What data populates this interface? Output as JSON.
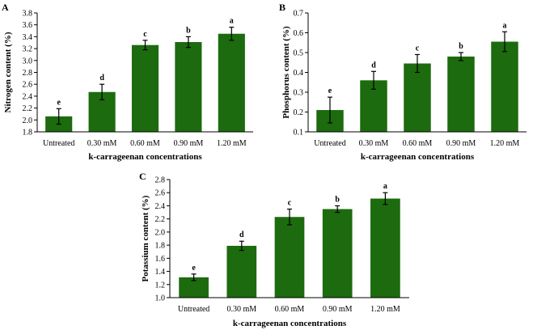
{
  "chart_data": [
    {
      "panel": "A",
      "type": "bar",
      "categories": [
        "Untreated",
        "0.30 mM",
        "0.60 mM",
        "0.90 mM",
        "1.20 mM"
      ],
      "values": [
        2.06,
        2.47,
        3.26,
        3.31,
        3.45
      ],
      "errors": [
        0.13,
        0.13,
        0.08,
        0.09,
        0.11
      ],
      "significance": [
        "e",
        "d",
        "c",
        "b",
        "a"
      ],
      "xlabel": "k-carrageenan concentrations",
      "ylabel": "Nitrogen content (%)",
      "ylim": [
        1.8,
        3.8
      ],
      "yticks": [
        "1.8",
        "2.0",
        "2.2",
        "2.4",
        "2.6",
        "2.8",
        "3.0",
        "3.2",
        "3.4",
        "3.6",
        "3.8"
      ],
      "color": "#1c6b0e"
    },
    {
      "panel": "B",
      "type": "bar",
      "categories": [
        "Untreated",
        "0.30 mM",
        "0.60 mM",
        "0.90 mM",
        "1.20 mM"
      ],
      "values": [
        0.21,
        0.36,
        0.445,
        0.48,
        0.555
      ],
      "errors": [
        0.065,
        0.045,
        0.045,
        0.02,
        0.05
      ],
      "significance": [
        "e",
        "d",
        "c",
        "b",
        "a"
      ],
      "xlabel": "k-carrageenan concentrations",
      "ylabel": "Phosphorus content (%)",
      "ylim": [
        0.1,
        0.7
      ],
      "yticks": [
        "0.1",
        "0.2",
        "0.3",
        "0.4",
        "0.5",
        "0.6",
        "0.7"
      ],
      "color": "#1c6b0e"
    },
    {
      "panel": "C",
      "type": "bar",
      "categories": [
        "Untreated",
        "0.30 mM",
        "0.60 mM",
        "0.90 mM",
        "1.20 mM"
      ],
      "values": [
        1.31,
        1.79,
        2.23,
        2.35,
        2.51
      ],
      "errors": [
        0.05,
        0.07,
        0.12,
        0.05,
        0.09
      ],
      "significance": [
        "e",
        "d",
        "c",
        "b",
        "a"
      ],
      "xlabel": "k-carrageenan concentrations",
      "ylabel": "Potassium content (%)",
      "ylim": [
        1.0,
        2.8
      ],
      "yticks": [
        "1.0",
        "1.2",
        "1.4",
        "1.6",
        "1.8",
        "2.0",
        "2.2",
        "2.4",
        "2.6",
        "2.8"
      ],
      "color": "#1c6b0e"
    }
  ]
}
